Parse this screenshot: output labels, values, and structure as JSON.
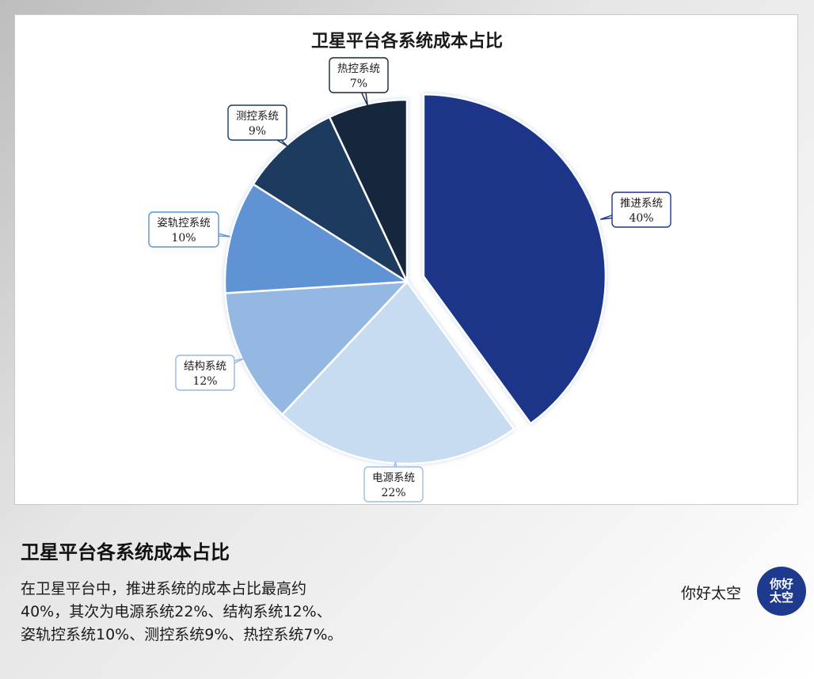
{
  "chart_data": {
    "type": "pie",
    "title": "卫星平台各系统成本占比",
    "slices": [
      {
        "name": "推进系统",
        "value": 40,
        "label": "40%",
        "color": "#1a3589",
        "exploded": true
      },
      {
        "name": "电源系统",
        "value": 22,
        "label": "22%",
        "color": "#c8dcf1",
        "exploded": false
      },
      {
        "name": "结构系统",
        "value": 12,
        "label": "12%",
        "color": "#95b8e2",
        "exploded": false
      },
      {
        "name": "姿轨控系统",
        "value": 10,
        "label": "10%",
        "color": "#5f93d4",
        "exploded": false
      },
      {
        "name": "测控系统",
        "value": 9,
        "label": "9%",
        "color": "#1f3a5f",
        "exploded": false
      },
      {
        "name": "热控系统",
        "value": 7,
        "label": "7%",
        "color": "#18263d",
        "exploded": false
      }
    ],
    "start_angle_deg": 0,
    "direction": "clockwise"
  },
  "caption": {
    "title": "卫星平台各系统成本占比",
    "lines": [
      "在卫星平台中，推进系统的成本占比最高约",
      "40%，其次为电源系统22%、结构系统12%、",
      "姿轨控系统10%、测控系统9%、热控系统7%。"
    ]
  },
  "brand": {
    "name": "你好太空",
    "logo_lines": [
      "你好",
      "太空"
    ]
  }
}
